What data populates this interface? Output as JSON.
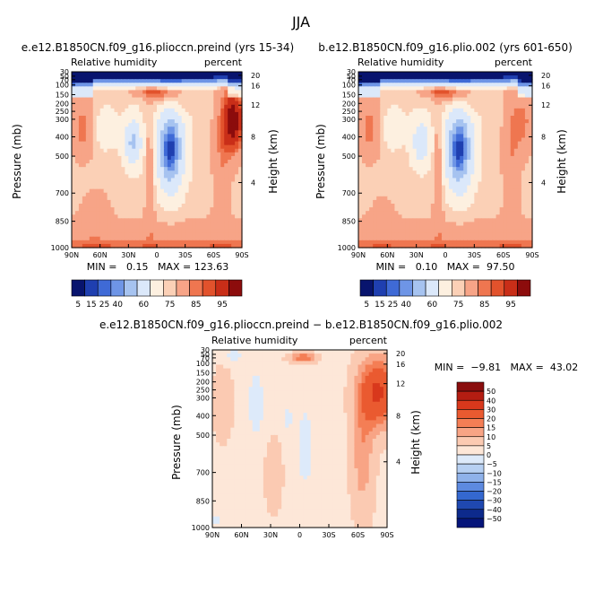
{
  "page_title": "JJA",
  "chart_data": [
    {
      "type": "heatmap",
      "title": "e.e12.B1850CN.f09_g16.plioccn.preind (yrs 15-34)",
      "variable_label": "Relative humidity",
      "units_label": "percent",
      "ylabel": "Pressure (mb)",
      "ylabel_right": "Height (km)",
      "x_ticks": [
        "90N",
        "60N",
        "30N",
        "0",
        "30S",
        "60S",
        "90S"
      ],
      "y_ticks": [
        "30",
        "50",
        "70",
        "100",
        "150",
        "200",
        "250",
        "300",
        "400",
        "500",
        "700",
        "850",
        "1000"
      ],
      "height_ticks": [
        "20",
        "16",
        "12",
        "8",
        "4"
      ],
      "stats_text": "MIN =   0.15   MAX = 123.63",
      "min": 0.15,
      "max": 123.63,
      "levels": [
        5,
        15,
        25,
        40,
        60,
        75,
        85,
        95
      ]
    },
    {
      "type": "heatmap",
      "title": "b.e12.B1850CN.f09_g16.plio.002 (yrs 601-650)",
      "variable_label": "Relative humidity",
      "units_label": "percent",
      "ylabel": "Pressure (mb)",
      "ylabel_right": "Height (km)",
      "x_ticks": [
        "90N",
        "60N",
        "30N",
        "0",
        "30S",
        "60S",
        "90S"
      ],
      "y_ticks": [
        "30",
        "50",
        "70",
        "100",
        "150",
        "200",
        "250",
        "300",
        "400",
        "500",
        "700",
        "850",
        "1000"
      ],
      "height_ticks": [
        "20",
        "16",
        "12",
        "8",
        "4"
      ],
      "stats_text": "MIN =   0.10   MAX =  97.50",
      "min": 0.1,
      "max": 97.5,
      "levels": [
        5,
        15,
        25,
        40,
        60,
        75,
        85,
        95
      ]
    },
    {
      "type": "heatmap",
      "title": "e.e12.B1850CN.f09_g16.plioccn.preind − b.e12.B1850CN.f09_g16.plio.002",
      "variable_label": "Relative humidity",
      "units_label": "percent",
      "ylabel": "Pressure (mb)",
      "ylabel_right": "Height (km)",
      "x_ticks": [
        "90N",
        "60N",
        "30N",
        "0",
        "30S",
        "60S",
        "90S"
      ],
      "y_ticks": [
        "30",
        "50",
        "70",
        "100",
        "150",
        "200",
        "250",
        "300",
        "400",
        "500",
        "700",
        "850",
        "1000"
      ],
      "height_ticks": [
        "20",
        "16",
        "12",
        "8",
        "4"
      ],
      "stats_text": "MIN =  −9.81   MAX =  43.02",
      "min": -9.81,
      "max": 43.02,
      "levels": [
        50,
        40,
        30,
        20,
        15,
        10,
        5,
        0,
        "−5",
        "−10",
        "−15",
        "−20",
        "−30",
        "−40",
        "−50"
      ]
    }
  ],
  "colors": {
    "seq": [
      "#08146e",
      "#1f3fb0",
      "#3f6ad6",
      "#6e95e6",
      "#a6c3f0",
      "#dbe8fa",
      "#fdf0e0",
      "#fbd0b6",
      "#f7a487",
      "#ef7650",
      "#e2522c",
      "#c92e18",
      "#8c0c0c"
    ],
    "diff": [
      "#8a0d0d",
      "#b41d12",
      "#d8381c",
      "#ea5a30",
      "#f47e55",
      "#f8a485",
      "#fbcab2",
      "#fde7d8",
      "#ddeafa",
      "#b7d0f2",
      "#8fb2ea",
      "#5d8ae0",
      "#3468d0",
      "#1f48b0",
      "#0d2a8c",
      "#05157a"
    ]
  }
}
